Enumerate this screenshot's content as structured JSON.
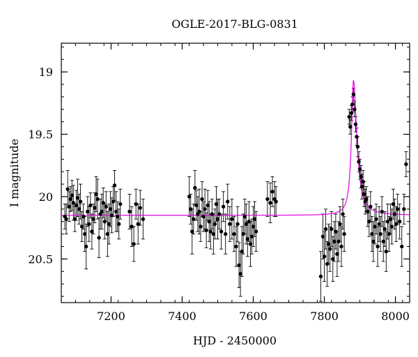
{
  "chart_data": {
    "type": "scatter",
    "title": "OGLE-2017-BLG-0831",
    "xlabel": "HJD - 2450000",
    "ylabel": "I magnitude",
    "xlim": [
      7060,
      8040
    ],
    "ylim": [
      20.85,
      18.77
    ],
    "y_inverted": true,
    "x_ticks": [
      7200,
      7400,
      7600,
      7800,
      8000
    ],
    "y_ticks": [
      19,
      19.5,
      20,
      20.5
    ],
    "x_tick_labels": [
      "7200",
      "7400",
      "7600",
      "7800",
      "8000"
    ],
    "y_tick_labels": [
      "19",
      "19.5",
      "20",
      "20.5"
    ],
    "grid": false,
    "model": {
      "name": "",
      "color": "#e000e0",
      "baseline": 20.15,
      "t0": 7882,
      "peak": 19.07,
      "rise_tau": 7.0,
      "decay_tau": 11.0
    },
    "points": [
      [
        7070,
        20.16,
        0.1
      ],
      [
        7074,
        20.18,
        0.12
      ],
      [
        7078,
        19.94,
        0.15
      ],
      [
        7082,
        20.08,
        0.12
      ],
      [
        7086,
        20.02,
        0.1
      ],
      [
        7090,
        19.99,
        0.12
      ],
      [
        7094,
        20.05,
        0.14
      ],
      [
        7098,
        20.18,
        0.1
      ],
      [
        7102,
        20.07,
        0.12
      ],
      [
        7106,
        20.01,
        0.15
      ],
      [
        7110,
        20.1,
        0.12
      ],
      [
        7114,
        20.04,
        0.14
      ],
      [
        7118,
        20.24,
        0.12
      ],
      [
        7122,
        20.16,
        0.1
      ],
      [
        7126,
        20.3,
        0.14
      ],
      [
        7130,
        20.4,
        0.18
      ],
      [
        7134,
        20.12,
        0.12
      ],
      [
        7138,
        20.22,
        0.14
      ],
      [
        7142,
        20.07,
        0.1
      ],
      [
        7146,
        20.28,
        0.14
      ],
      [
        7150,
        20.18,
        0.12
      ],
      [
        7154,
        20.09,
        0.12
      ],
      [
        7158,
        19.98,
        0.14
      ],
      [
        7162,
        20.02,
        0.16
      ],
      [
        7166,
        20.33,
        0.16
      ],
      [
        7170,
        20.14,
        0.12
      ],
      [
        7174,
        20.12,
        0.14
      ],
      [
        7178,
        20.05,
        0.12
      ],
      [
        7182,
        20.2,
        0.14
      ],
      [
        7186,
        20.08,
        0.12
      ],
      [
        7190,
        20.3,
        0.18
      ],
      [
        7194,
        20.22,
        0.16
      ],
      [
        7198,
        20.1,
        0.14
      ],
      [
        7202,
        20.15,
        0.14
      ],
      [
        7206,
        20.04,
        0.12
      ],
      [
        7210,
        19.91,
        0.12
      ],
      [
        7214,
        20.12,
        0.16
      ],
      [
        7218,
        20.16,
        0.12
      ],
      [
        7222,
        20.22,
        0.12
      ],
      [
        7226,
        20.06,
        0.12
      ],
      [
        7252,
        20.12,
        0.14
      ],
      [
        7258,
        20.24,
        0.16
      ],
      [
        7264,
        20.38,
        0.14
      ],
      [
        7270,
        20.06,
        0.12
      ],
      [
        7276,
        20.22,
        0.16
      ],
      [
        7282,
        20.09,
        0.14
      ],
      [
        7290,
        20.18,
        0.16
      ],
      [
        7420,
        20.0,
        0.16
      ],
      [
        7424,
        20.1,
        0.12
      ],
      [
        7428,
        20.28,
        0.18
      ],
      [
        7432,
        20.18,
        0.12
      ],
      [
        7436,
        19.93,
        0.14
      ],
      [
        7440,
        20.07,
        0.12
      ],
      [
        7444,
        20.14,
        0.14
      ],
      [
        7448,
        20.12,
        0.18
      ],
      [
        7452,
        20.24,
        0.12
      ],
      [
        7456,
        20.02,
        0.14
      ],
      [
        7460,
        20.16,
        0.12
      ],
      [
        7464,
        20.1,
        0.16
      ],
      [
        7468,
        20.27,
        0.14
      ],
      [
        7472,
        20.07,
        0.12
      ],
      [
        7476,
        20.2,
        0.16
      ],
      [
        7480,
        20.28,
        0.14
      ],
      [
        7484,
        20.14,
        0.12
      ],
      [
        7488,
        20.3,
        0.16
      ],
      [
        7492,
        20.22,
        0.12
      ],
      [
        7496,
        20.06,
        0.14
      ],
      [
        7500,
        20.18,
        0.16
      ],
      [
        7504,
        20.14,
        0.12
      ],
      [
        7510,
        20.28,
        0.14
      ],
      [
        7516,
        20.08,
        0.12
      ],
      [
        7522,
        20.3,
        0.16
      ],
      [
        7528,
        20.04,
        0.14
      ],
      [
        7534,
        20.22,
        0.14
      ],
      [
        7540,
        20.18,
        0.16
      ],
      [
        7546,
        20.3,
        0.14
      ],
      [
        7552,
        20.4,
        0.16
      ],
      [
        7556,
        20.22,
        0.14
      ],
      [
        7560,
        20.55,
        0.18
      ],
      [
        7564,
        20.62,
        0.18
      ],
      [
        7568,
        20.44,
        0.2
      ],
      [
        7572,
        20.3,
        0.16
      ],
      [
        7576,
        20.16,
        0.14
      ],
      [
        7580,
        20.22,
        0.16
      ],
      [
        7584,
        20.34,
        0.14
      ],
      [
        7588,
        20.2,
        0.16
      ],
      [
        7592,
        20.38,
        0.18
      ],
      [
        7596,
        20.32,
        0.14
      ],
      [
        7600,
        20.24,
        0.16
      ],
      [
        7604,
        20.18,
        0.14
      ],
      [
        7608,
        20.28,
        0.16
      ],
      [
        7640,
        20.02,
        0.14
      ],
      [
        7648,
        20.05,
        0.16
      ],
      [
        7654,
        19.96,
        0.12
      ],
      [
        7660,
        20.02,
        0.14
      ],
      [
        7664,
        20.04,
        0.12
      ],
      [
        7790,
        20.64,
        0.2
      ],
      [
        7796,
        20.32,
        0.18
      ],
      [
        7800,
        20.48,
        0.2
      ],
      [
        7804,
        20.26,
        0.16
      ],
      [
        7808,
        20.54,
        0.18
      ],
      [
        7812,
        20.38,
        0.16
      ],
      [
        7816,
        20.42,
        0.18
      ],
      [
        7820,
        20.26,
        0.14
      ],
      [
        7824,
        20.5,
        0.18
      ],
      [
        7828,
        20.36,
        0.16
      ],
      [
        7832,
        20.28,
        0.14
      ],
      [
        7836,
        20.46,
        0.18
      ],
      [
        7840,
        20.36,
        0.16
      ],
      [
        7844,
        20.22,
        0.14
      ],
      [
        7848,
        20.4,
        0.16
      ],
      [
        7852,
        20.14,
        0.12
      ],
      [
        7856,
        20.3,
        0.14
      ],
      [
        7870,
        19.36,
        0.06
      ],
      [
        7873,
        19.44,
        0.06
      ],
      [
        7876,
        19.33,
        0.06
      ],
      [
        7879,
        19.26,
        0.06
      ],
      [
        7882,
        19.18,
        0.05
      ],
      [
        7885,
        19.3,
        0.06
      ],
      [
        7888,
        19.42,
        0.06
      ],
      [
        7891,
        19.52,
        0.07
      ],
      [
        7894,
        19.6,
        0.08
      ],
      [
        7897,
        19.72,
        0.08
      ],
      [
        7900,
        19.78,
        0.08
      ],
      [
        7903,
        19.84,
        0.09
      ],
      [
        7906,
        19.92,
        0.1
      ],
      [
        7909,
        19.88,
        0.09
      ],
      [
        7912,
        19.98,
        0.1
      ],
      [
        7915,
        20.04,
        0.1
      ],
      [
        7918,
        20.02,
        0.1
      ],
      [
        7922,
        20.12,
        0.12
      ],
      [
        7926,
        20.2,
        0.12
      ],
      [
        7930,
        20.08,
        0.12
      ],
      [
        7934,
        20.3,
        0.14
      ],
      [
        7938,
        20.36,
        0.16
      ],
      [
        7942,
        20.24,
        0.14
      ],
      [
        7946,
        20.18,
        0.12
      ],
      [
        7950,
        20.4,
        0.16
      ],
      [
        7954,
        20.22,
        0.14
      ],
      [
        7958,
        20.3,
        0.14
      ],
      [
        7962,
        20.12,
        0.12
      ],
      [
        7966,
        20.36,
        0.16
      ],
      [
        7970,
        20.26,
        0.14
      ],
      [
        7974,
        20.44,
        0.16
      ],
      [
        7978,
        20.2,
        0.14
      ],
      [
        7982,
        20.3,
        0.14
      ],
      [
        7986,
        20.18,
        0.12
      ],
      [
        7990,
        20.24,
        0.14
      ],
      [
        7994,
        20.06,
        0.12
      ],
      [
        7998,
        20.14,
        0.12
      ],
      [
        8002,
        20.22,
        0.14
      ],
      [
        8006,
        20.1,
        0.12
      ],
      [
        8012,
        20.2,
        0.14
      ],
      [
        8018,
        20.4,
        0.16
      ],
      [
        8024,
        20.1,
        0.12
      ],
      [
        8030,
        19.74,
        0.1
      ]
    ]
  }
}
